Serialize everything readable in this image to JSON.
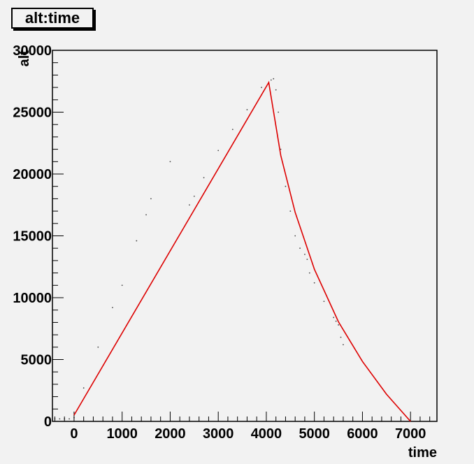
{
  "chart_data": {
    "type": "line",
    "title": "alt:time",
    "xlabel": "time",
    "ylabel": "alt",
    "xlim": [
      -450,
      7550
    ],
    "ylim": [
      0,
      30000
    ],
    "x_ticks": [
      0,
      1000,
      2000,
      3000,
      4000,
      5000,
      6000,
      7000
    ],
    "x_tick_labels": [
      "0",
      "1000",
      "2000",
      "3000",
      "4000",
      "5000",
      "6000",
      "7000"
    ],
    "y_ticks": [
      0,
      5000,
      10000,
      15000,
      20000,
      25000,
      30000
    ],
    "y_tick_labels": [
      "0",
      "5000",
      "10000",
      "15000",
      "20000",
      "25000",
      "30000"
    ],
    "grid": false,
    "legend": "none",
    "series": [
      {
        "kind": "scatter",
        "color": "#000000",
        "x": [
          -400,
          -300,
          -200,
          -100,
          0,
          200,
          500,
          800,
          1000,
          1300,
          1500,
          1600,
          2000,
          2400,
          2500,
          2700,
          3000,
          3300,
          3600,
          3900,
          4100,
          4150,
          4200,
          4250,
          4300,
          4400,
          4500,
          4600,
          4700,
          4800,
          4850,
          4900,
          5000,
          5200,
          5400,
          5450,
          5500,
          5550,
          5600
        ],
        "y": [
          200,
          200,
          200,
          200,
          300,
          2700,
          6000,
          9200,
          11000,
          14600,
          16700,
          18000,
          21000,
          17500,
          18200,
          19700,
          21900,
          23600,
          25200,
          27000,
          27600,
          27700,
          26800,
          25000,
          22000,
          19000,
          17000,
          15000,
          14000,
          13500,
          13100,
          12000,
          11200,
          9700,
          8400,
          8100,
          7800,
          6800,
          6200
        ]
      },
      {
        "kind": "line",
        "color": "#dd0000",
        "x": [
          0,
          4050,
          4300,
          4600,
          5000,
          5500,
          6000,
          6500,
          7000
        ],
        "y": [
          500,
          27400,
          21500,
          16900,
          12300,
          8050,
          4850,
          2200,
          0
        ]
      }
    ]
  }
}
